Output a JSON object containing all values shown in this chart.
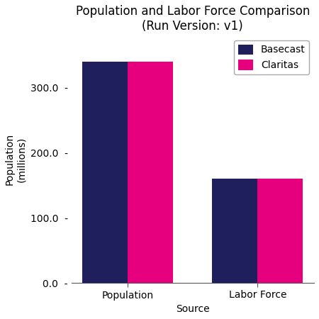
{
  "title": "Population and Labor Force Comparison\n(Run Version: v1)",
  "categories": [
    "Population",
    "Labor Force"
  ],
  "series": [
    {
      "name": "Basecast",
      "values": [
        340.0,
        160.0
      ],
      "color": "#1f1f5e"
    },
    {
      "name": "Claritas",
      "values": [
        340.0,
        160.0
      ],
      "color": "#e6007e"
    }
  ],
  "xlabel": "Source",
  "ylabel": "Population\n(millions)",
  "ylim": [
    0,
    380
  ],
  "yticks": [
    0.0,
    100.0,
    200.0,
    300.0
  ],
  "ytick_labels": [
    "0.0",
    "100.0",
    "200.0",
    "300.0"
  ],
  "bar_width": 0.35,
  "legend_loc": "upper right",
  "title_fontsize": 12,
  "axis_fontsize": 10,
  "tick_fontsize": 10,
  "background_color": "#ffffff"
}
